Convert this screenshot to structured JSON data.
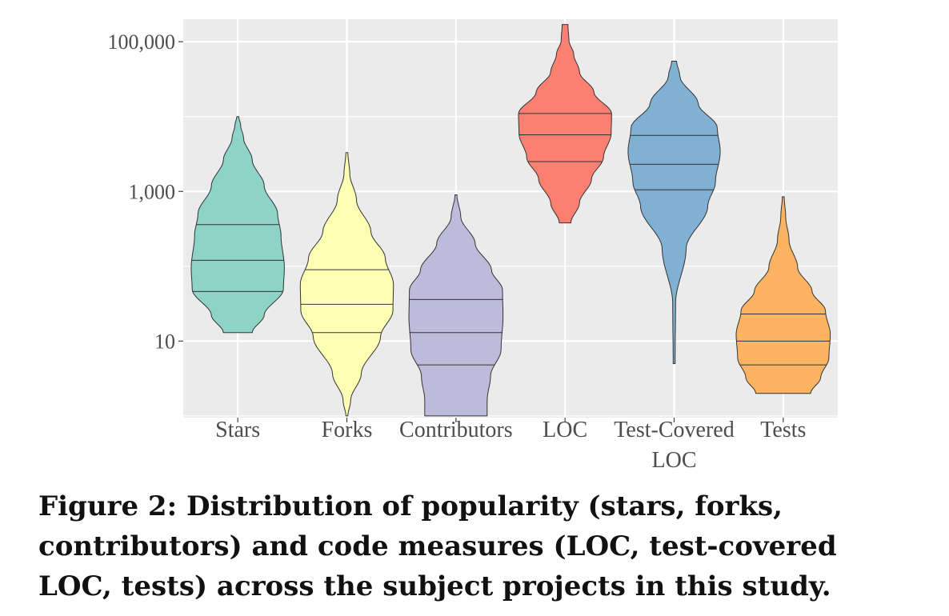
{
  "caption": "Figure 2: Distribution of popularity (stars, forks, contributors) and code measures (LOC, test-covered LOC, tests) across the subject projects in this study.",
  "chart_data": {
    "type": "violin",
    "yscale": "log10",
    "ylim": [
      0.95,
      200000
    ],
    "yticks": [
      {
        "value": 10,
        "label": "10"
      },
      {
        "value": 1000,
        "label": "1,000"
      },
      {
        "value": 100000,
        "label": "100,000"
      }
    ],
    "minor_gridlines": [
      1,
      100,
      10000
    ],
    "grid": true,
    "background": "#ebebeb",
    "categories": [
      {
        "label": "Stars",
        "color": "#8dd3c7",
        "min": 13,
        "q1": 46,
        "median": 120,
        "q3": 360,
        "max": 10000,
        "profile": [
          [
            0,
            0.3
          ],
          [
            0.08,
            0.55
          ],
          [
            0.2,
            0.95
          ],
          [
            0.3,
            0.97
          ],
          [
            0.45,
            0.9
          ],
          [
            0.55,
            0.83
          ],
          [
            0.68,
            0.55
          ],
          [
            0.8,
            0.3
          ],
          [
            0.9,
            0.12
          ],
          [
            0.96,
            0.06
          ],
          [
            1,
            0.02
          ]
        ]
      },
      {
        "label": "Forks",
        "color": "#ffffb3",
        "min": 1,
        "q1": 13,
        "median": 31,
        "q3": 90,
        "max": 3300,
        "profile": [
          [
            0,
            0.02
          ],
          [
            0.06,
            0.08
          ],
          [
            0.16,
            0.3
          ],
          [
            0.3,
            0.7
          ],
          [
            0.4,
            0.96
          ],
          [
            0.5,
            0.97
          ],
          [
            0.6,
            0.8
          ],
          [
            0.7,
            0.5
          ],
          [
            0.82,
            0.2
          ],
          [
            0.92,
            0.06
          ],
          [
            1,
            0.02
          ]
        ]
      },
      {
        "label": "Contributors",
        "color": "#bebada",
        "min": 1,
        "q1": 4.8,
        "median": 13,
        "q3": 36,
        "max": 900,
        "profile": [
          [
            0,
            0.65
          ],
          [
            0.07,
            0.65
          ],
          [
            0.18,
            0.72
          ],
          [
            0.3,
            0.94
          ],
          [
            0.45,
            0.98
          ],
          [
            0.57,
            0.97
          ],
          [
            0.66,
            0.74
          ],
          [
            0.78,
            0.4
          ],
          [
            0.9,
            0.1
          ],
          [
            1,
            0.02
          ]
        ]
      },
      {
        "label": "LOC",
        "color": "#fb8072",
        "min": 380,
        "q1": 2500,
        "median": 5700,
        "q3": 11000,
        "max": 170000,
        "profile": [
          [
            0,
            0.12
          ],
          [
            0.1,
            0.3
          ],
          [
            0.22,
            0.55
          ],
          [
            0.33,
            0.8
          ],
          [
            0.45,
            0.96
          ],
          [
            0.55,
            0.97
          ],
          [
            0.66,
            0.6
          ],
          [
            0.76,
            0.3
          ],
          [
            0.85,
            0.18
          ],
          [
            0.92,
            0.08
          ],
          [
            1,
            0.06
          ]
        ]
      },
      {
        "label": "Test-Covered\nLOC",
        "color": "#80b1d3",
        "min": 5,
        "q1": 1050,
        "median": 2300,
        "q3": 5600,
        "max": 55000,
        "profile": [
          [
            0,
            0.02
          ],
          [
            0.2,
            0.03
          ],
          [
            0.38,
            0.25
          ],
          [
            0.52,
            0.7
          ],
          [
            0.6,
            0.86
          ],
          [
            0.7,
            0.96
          ],
          [
            0.78,
            0.9
          ],
          [
            0.86,
            0.5
          ],
          [
            0.95,
            0.12
          ],
          [
            1,
            0.05
          ]
        ]
      },
      {
        "label": "Tests",
        "color": "#fdb462",
        "min": 2,
        "q1": 4.8,
        "median": 10,
        "q3": 23,
        "max": 850,
        "profile": [
          [
            0,
            0.57
          ],
          [
            0.08,
            0.78
          ],
          [
            0.18,
            0.95
          ],
          [
            0.3,
            0.98
          ],
          [
            0.42,
            0.88
          ],
          [
            0.52,
            0.6
          ],
          [
            0.64,
            0.3
          ],
          [
            0.78,
            0.12
          ],
          [
            0.9,
            0.05
          ],
          [
            1,
            0.02
          ]
        ]
      }
    ]
  }
}
